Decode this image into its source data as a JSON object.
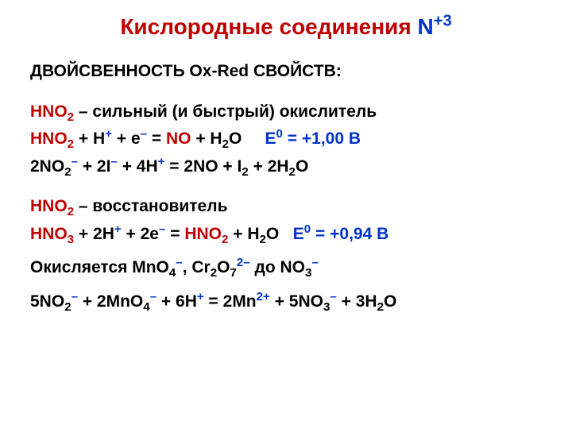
{
  "title": {
    "main": "Кислородные соединения ",
    "symbol": "N",
    "charge": "+3"
  },
  "lines": {
    "l1": "ДВОЙСВЕННОСТЬ Ox-Red СВОЙСТВ:",
    "l2a": "HNO",
    "l2b": " – сильный (и быстрый) окислитель",
    "l3a": "HNO",
    "l3b": " + H",
    "l3c": " + e",
    "l3d": " = ",
    "l3e": "NO",
    "l3f": " + H",
    "l3g": "O",
    "l3h": "E",
    "l3i": " = +1,00 B",
    "l4a": "2NO",
    "l4b": " + 2I",
    "l4c": " + 4H",
    "l4d": " = 2NO + I",
    "l4e": " + 2H",
    "l4f": "O",
    "l5a": "HNO",
    "l5b": " – восстановитель",
    "l6a": "HNO",
    "l6b": " + 2H",
    "l6c": " + 2e",
    "l6d": " = ",
    "l6e": "HNO",
    "l6f": " + H",
    "l6g": "O",
    "l6h": "E",
    "l6i": " = +0,94 B",
    "l7a": "Окисляется MnO",
    "l7b": ", Cr",
    "l7c": "O",
    "l7d": " до NO",
    "l8a": "5NO",
    "l8b": " + 2MnO",
    "l8c": " + 6H",
    "l8d": " = 2Mn",
    "l8e": " + 5NO",
    "l8f": " + 3H",
    "l8g": "O"
  },
  "styling": {
    "background": "#ffffff",
    "text_color": "#000000",
    "red": "#c00000",
    "blue": "#0033cc",
    "title_fontsize": 28,
    "body_fontsize": 21,
    "font_weight": "bold",
    "font_family": "Arial"
  }
}
